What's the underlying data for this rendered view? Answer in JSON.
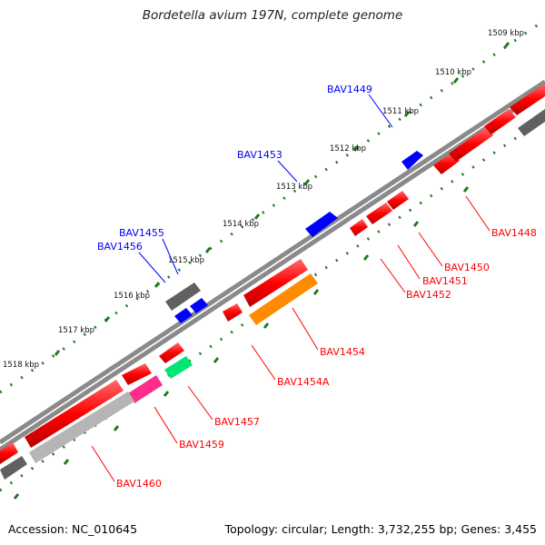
{
  "title": "Bordetella avium 197N, complete genome",
  "footer": {
    "accession": "Accession: NC_010645",
    "topology": "Topology: circular; Length: 3,732,255 bp; Genes: 3,455"
  },
  "colors": {
    "forward_gene": "#ff0000",
    "reverse_gene": "#0000ff",
    "pseudo_gene": "#606060",
    "rRNA": "#ff8c00",
    "tRNA": "#00e676",
    "misc_rna": "#ff2d8a",
    "other_feature": "#b5b5b5",
    "backbone": "#8a8a8a",
    "tick": "#1d7a1d",
    "label_forward": "#0000ff",
    "label_reverse": "#ff0000"
  },
  "ticks": [
    "1509 kbp",
    "1510 kbp",
    "1511 kbp",
    "1512 kbp",
    "1513 kbp",
    "1514 kbp",
    "1515 kbp",
    "1516 kbp",
    "1517 kbp",
    "1518 kbp"
  ],
  "gene_labels": {
    "forward": [
      "BAV1449",
      "BAV1453",
      "BAV1455",
      "BAV1456"
    ],
    "reverse": [
      "BAV1448",
      "BAV1450",
      "BAV1451",
      "BAV1452",
      "BAV1454",
      "BAV1454A",
      "BAV1457",
      "BAV1459",
      "BAV1460"
    ]
  }
}
